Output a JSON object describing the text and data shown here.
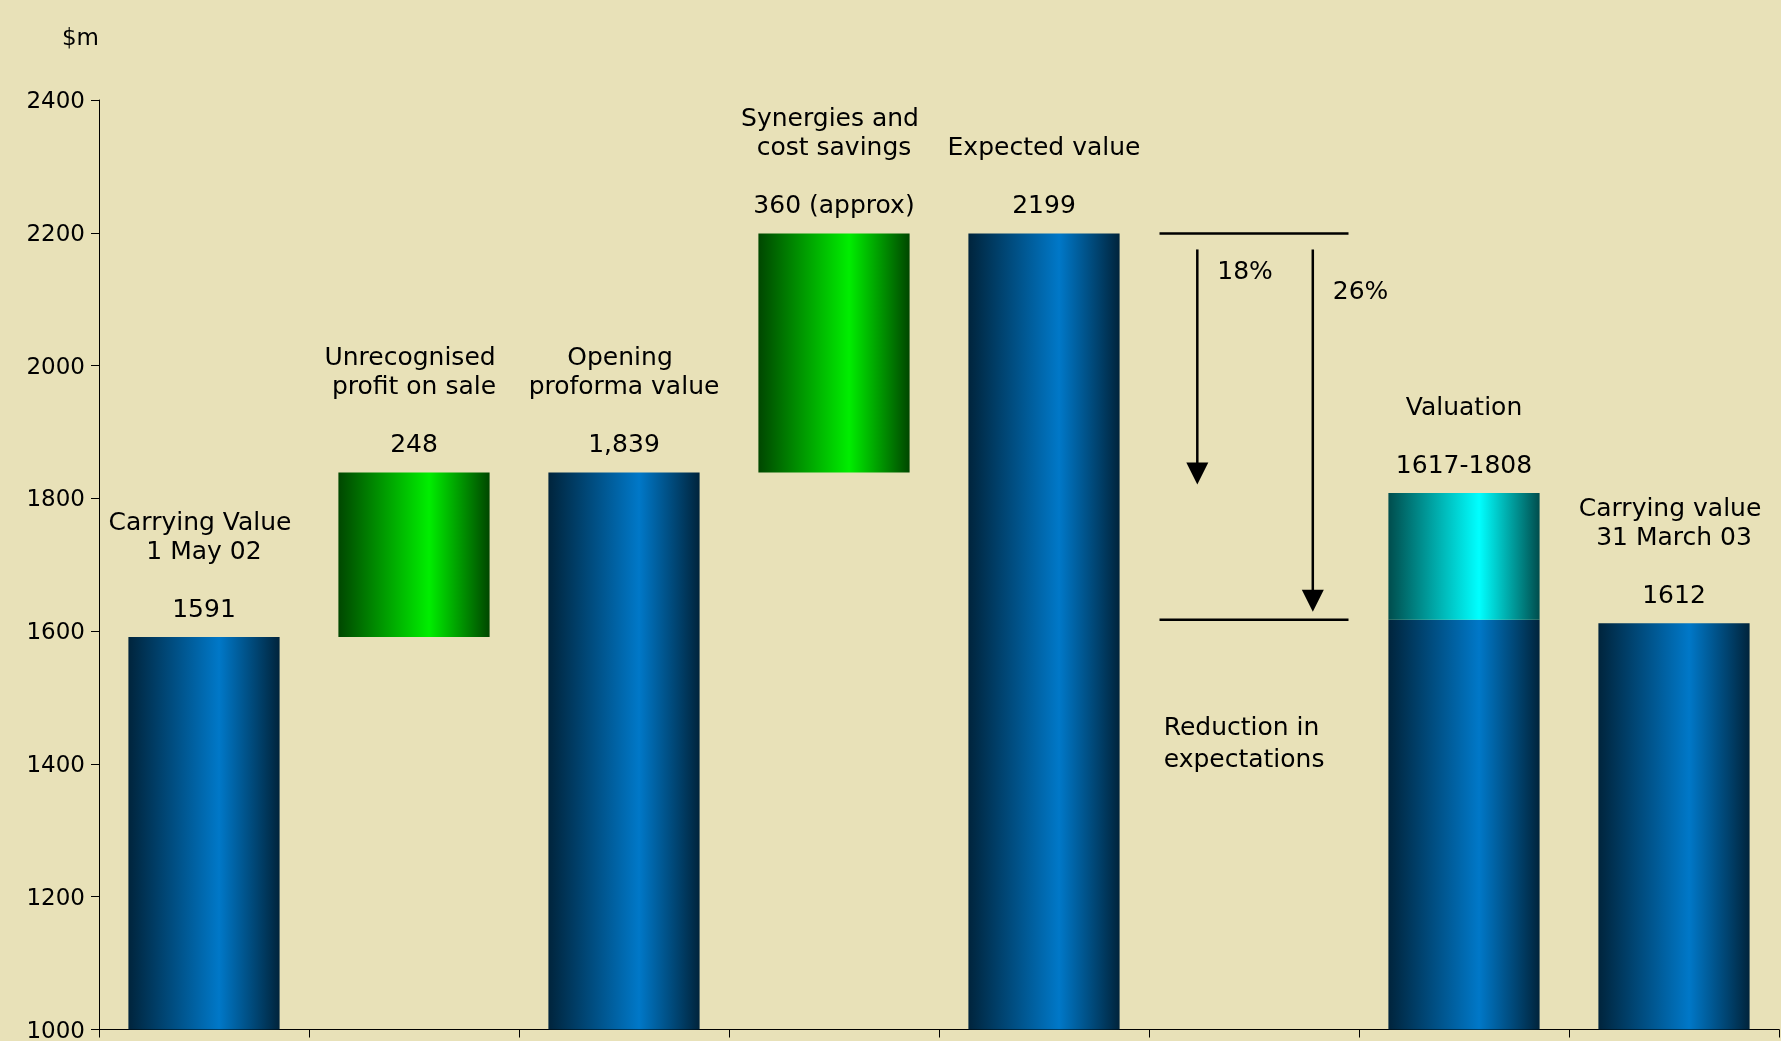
{
  "chart_data": {
    "type": "bar",
    "ylabel": "$m",
    "categories": [
      "Carrying Value 1 May 02",
      "Unrecognised profit on sale",
      "Opening proforma value",
      "Synergies and cost savings",
      "Expected value",
      null,
      "Valuation",
      "Carrying value 31 March 03"
    ],
    "series": [
      {
        "color": "#0078c8",
        "values": [
          1591,
          null,
          1839,
          null,
          2199,
          null,
          1617,
          1612
        ],
        "value_labels": [
          "1591",
          null,
          "1,839",
          null,
          "2199",
          null,
          null,
          "1612"
        ]
      },
      {
        "color": "#00ee00",
        "values": [
          null,
          248,
          null,
          360,
          null,
          null,
          null,
          null
        ],
        "base": [
          null,
          1591,
          null,
          1839,
          null,
          null,
          null,
          null
        ],
        "value_labels": [
          null,
          "248",
          null,
          "360 (approx)",
          null,
          null,
          null,
          null
        ]
      },
      {
        "color": "#00ffff",
        "values": [
          null,
          null,
          null,
          null,
          null,
          null,
          191,
          null
        ],
        "base": [
          null,
          null,
          null,
          null,
          null,
          null,
          1617,
          null
        ],
        "value_labels": [
          null,
          null,
          null,
          null,
          null,
          null,
          "1617-1808",
          null
        ]
      }
    ],
    "ylim": [
      1000,
      2400
    ],
    "yticks": [
      1000,
      1200,
      1400,
      1600,
      1800,
      2000,
      2200,
      2400
    ],
    "grid": false,
    "ref_lines": [
      {
        "axis": "y",
        "value": 2199,
        "color": "#000000"
      },
      {
        "axis": "y",
        "value": 1617,
        "color": "#000000"
      }
    ],
    "annotations": [
      "18%",
      "26%",
      "Reduction in expectations"
    ]
  }
}
